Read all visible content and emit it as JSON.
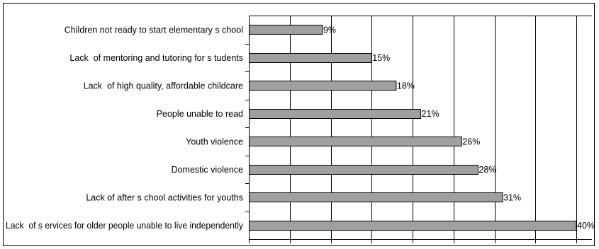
{
  "chart_data": {
    "type": "bar",
    "orientation": "horizontal",
    "categories": [
      "Children not ready to start elementary s chool",
      "Lack  of mentoring and tutoring for s tudents",
      "Lack  of high quality, affordable childcare",
      "People unable to read",
      "Youth violence",
      "Domestic violence",
      "Lack of after s chool activities for youths",
      "Lack  of s ervices for older people unable to live independently"
    ],
    "values": [
      9,
      15,
      18,
      21,
      26,
      28,
      31,
      40
    ],
    "value_labels": [
      "9%",
      "15%",
      "18%",
      "21%",
      "26%",
      "28%",
      "31%",
      "40%"
    ],
    "xlim": [
      0,
      40
    ],
    "grid": true,
    "bar_color": "#a0a0a0",
    "title": "",
    "xlabel": "",
    "ylabel": ""
  }
}
